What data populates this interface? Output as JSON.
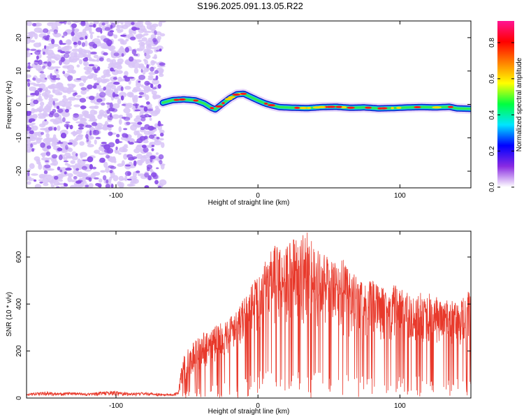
{
  "title": "S196.2025.091.13.05.R22",
  "colors": {
    "trace": "#e8392b",
    "noise": "#8a4ee8",
    "noise_light": "#d8c4f7",
    "axis": "#000000"
  },
  "chart_data": [
    {
      "type": "heatmap",
      "xlabel": "Height of straight line (km)",
      "ylabel": "Frequency (Hz)",
      "xlim": [
        -163,
        150
      ],
      "ylim": [
        -25,
        25
      ],
      "xticks": [
        -100,
        0,
        100
      ],
      "yticks": [
        -20,
        -10,
        0,
        10,
        20
      ],
      "xtick_labels": [
        "-100",
        "0",
        "100"
      ],
      "ytick_labels": [
        "-20",
        "-10",
        "0",
        "10",
        "20"
      ],
      "noise_region_x": [
        -163,
        -67
      ],
      "colorbar": {
        "label": "Normalized spectral amplitude",
        "range": [
          0,
          0.92
        ],
        "ticks": [
          0.0,
          0.2,
          0.4,
          0.6,
          0.8
        ],
        "tick_labels": [
          "0.0",
          "0.2",
          "0.4",
          "0.6",
          "0.8"
        ],
        "colormap": [
          "#ffffff",
          "#8a2be2",
          "#0000ff",
          "#00e5ff",
          "#00ff40",
          "#ffff00",
          "#ff8000",
          "#ff0000",
          "#ff1493"
        ]
      },
      "doppler_track": {
        "x": [
          -67,
          -60,
          -52,
          -44,
          -38,
          -33,
          -30,
          -25,
          -20,
          -15,
          -10,
          -5,
          0,
          5,
          10,
          15,
          25,
          35,
          45,
          55,
          65,
          75,
          85,
          95,
          105,
          115,
          125,
          135,
          140,
          150
        ],
        "y": [
          0.5,
          1.3,
          1.5,
          1.2,
          0.3,
          -1.0,
          -1.5,
          0.2,
          1.8,
          3.0,
          3.2,
          2.2,
          1.2,
          0.3,
          -0.3,
          -0.8,
          -1.0,
          -1.1,
          -0.8,
          -0.7,
          -1.0,
          -0.9,
          -1.2,
          -1.1,
          -0.9,
          -0.8,
          -0.9,
          -0.7,
          -1.2,
          -1.3
        ],
        "peak_amplitude": 0.9
      }
    },
    {
      "type": "line",
      "xlabel": "Height of straight line (km)",
      "ylabel": "SNR (10 * v/v)",
      "xlim": [
        -163,
        150
      ],
      "ylim": [
        0,
        710
      ],
      "xticks": [
        -100,
        0,
        100
      ],
      "yticks": [
        0,
        200,
        400,
        600
      ],
      "xtick_labels": [
        "-100",
        "0",
        "100"
      ],
      "ytick_labels": [
        "0",
        "200",
        "400",
        "600"
      ],
      "series": [
        {
          "x": [
            -163,
            -150,
            -140,
            -130,
            -120,
            -110,
            -100,
            -90,
            -80,
            -70,
            -60,
            -56,
            -53,
            -50,
            -45,
            -40,
            -35,
            -30,
            -25,
            -20,
            -15,
            -10,
            -5,
            0,
            5,
            10,
            15,
            20,
            25,
            30,
            35,
            40,
            45,
            50,
            55,
            60,
            65,
            70,
            75,
            80,
            85,
            90,
            95,
            100,
            105,
            110,
            115,
            120,
            125,
            130,
            135,
            140,
            145,
            150
          ],
          "envelope": [
            18,
            28,
            22,
            25,
            20,
            28,
            30,
            22,
            25,
            20,
            18,
            28,
            180,
            200,
            250,
            270,
            300,
            310,
            320,
            350,
            390,
            420,
            480,
            520,
            580,
            640,
            660,
            650,
            680,
            690,
            710,
            640,
            620,
            600,
            570,
            590,
            550,
            520,
            500,
            500,
            480,
            470,
            490,
            460,
            460,
            440,
            450,
            450,
            430,
            430,
            410,
            420,
            440,
            460
          ],
          "baseline": [
            8,
            10,
            8,
            10,
            8,
            10,
            10,
            8,
            10,
            8,
            8,
            12,
            60,
            70,
            90,
            110,
            130,
            150,
            170,
            190,
            210,
            230,
            260,
            280,
            300,
            310,
            300,
            300,
            310,
            300,
            290,
            290,
            280,
            270,
            270,
            260,
            260,
            250,
            250,
            240,
            240,
            240,
            230,
            230,
            230,
            230,
            230,
            220,
            220,
            220,
            220,
            210,
            210,
            220
          ]
        }
      ]
    }
  ]
}
